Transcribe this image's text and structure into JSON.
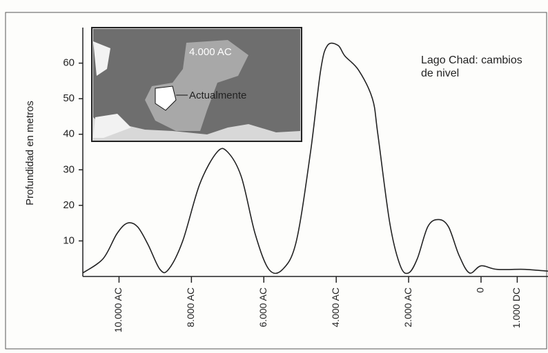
{
  "chart_data": {
    "type": "line",
    "title": "Lago Chad: cambios de nivel",
    "y_label": "Profundidad en metros",
    "annotations": [
      "4.000 AC",
      "Actualmente"
    ],
    "x": [
      -11000,
      -10440,
      -10060,
      -9770,
      -9490,
      -9200,
      -8870,
      -8630,
      -8240,
      -7770,
      -7290,
      -7000,
      -6620,
      -6240,
      -5860,
      -5480,
      -5100,
      -4710,
      -4430,
      -4240,
      -3950,
      -3760,
      -3380,
      -3000,
      -2850,
      -2520,
      -2230,
      -2000,
      -1760,
      -1470,
      -1180,
      -900,
      -610,
      -320,
      0,
      440,
      1200,
      1850
    ],
    "values": [
      1,
      5,
      12,
      15,
      14,
      9,
      2,
      2,
      10,
      26,
      35,
      35,
      28,
      12,
      2,
      2,
      10,
      35,
      58,
      65,
      65,
      62,
      58,
      50,
      40,
      15,
      3,
      1,
      5,
      14,
      16,
      14,
      6,
      1,
      3,
      2,
      2,
      1.5
    ],
    "color": "#222222",
    "xlim": [
      -11000,
      1850
    ],
    "ylim": [
      0,
      70
    ],
    "xticks": [
      {
        "value": -10000,
        "label": "10.000 AC"
      },
      {
        "value": -8000,
        "label": "8.000 AC"
      },
      {
        "value": -6000,
        "label": "6.000 AC"
      },
      {
        "value": -4000,
        "label": "4.000 AC"
      },
      {
        "value": -2000,
        "label": "2.000 AC"
      },
      0,
      {
        "value": 1000,
        "label": "1.000 DC"
      }
    ],
    "yticks": [
      10,
      20,
      30,
      40,
      50,
      60
    ]
  }
}
